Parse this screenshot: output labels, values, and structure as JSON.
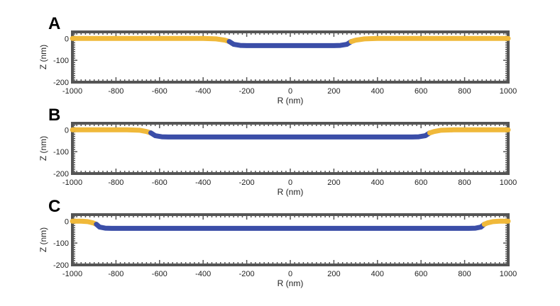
{
  "chart_data": [
    {
      "type": "line",
      "panel_label": "A",
      "xlabel": "R (nm)",
      "ylabel": "Z (nm)",
      "xlim": [
        -1000,
        1000
      ],
      "ylim": [
        -200,
        30
      ],
      "x_ticks": [
        -1000,
        -800,
        -600,
        -400,
        -200,
        0,
        200,
        400,
        600,
        800,
        1000
      ],
      "y_ticks": [
        0,
        -100,
        -200
      ],
      "grid": false,
      "series": [
        {
          "color": "#f0b93a",
          "x": [
            -1000,
            -400,
            -340,
            -300,
            -280
          ],
          "y": [
            0,
            0,
            -2,
            -8,
            -14
          ]
        },
        {
          "color": "#3b4ea8",
          "x": [
            -280,
            -260,
            -230,
            -200,
            0,
            200,
            230,
            260,
            280
          ],
          "y": [
            -14,
            -27,
            -32,
            -33,
            -33,
            -33,
            -32,
            -27,
            -14
          ]
        },
        {
          "color": "#f0b93a",
          "x": [
            280,
            300,
            340,
            400,
            1000
          ],
          "y": [
            -14,
            -8,
            -2,
            0,
            0
          ]
        }
      ]
    },
    {
      "type": "line",
      "panel_label": "B",
      "xlabel": "R (nm)",
      "ylabel": "Z (nm)",
      "xlim": [
        -1000,
        1000
      ],
      "ylim": [
        -200,
        30
      ],
      "x_ticks": [
        -1000,
        -800,
        -600,
        -400,
        -200,
        0,
        200,
        400,
        600,
        800,
        1000
      ],
      "y_ticks": [
        0,
        -100,
        -200
      ],
      "grid": false,
      "series": [
        {
          "color": "#f0b93a",
          "x": [
            -1000,
            -750,
            -690,
            -660,
            -640
          ],
          "y": [
            0,
            0,
            -2,
            -8,
            -14
          ]
        },
        {
          "color": "#3b4ea8",
          "x": [
            -640,
            -620,
            -590,
            -560,
            0,
            560,
            590,
            620,
            640
          ],
          "y": [
            -14,
            -27,
            -32,
            -33,
            -33,
            -33,
            -32,
            -27,
            -14
          ]
        },
        {
          "color": "#f0b93a",
          "x": [
            640,
            660,
            690,
            750,
            1000
          ],
          "y": [
            -14,
            -8,
            -2,
            0,
            0
          ]
        }
      ]
    },
    {
      "type": "line",
      "panel_label": "C",
      "xlabel": "R (nm)",
      "ylabel": "Z (nm)",
      "xlim": [
        -1000,
        1000
      ],
      "ylim": [
        -200,
        30
      ],
      "x_ticks": [
        -1000,
        -800,
        -600,
        -400,
        -200,
        0,
        200,
        400,
        600,
        800,
        1000
      ],
      "y_ticks": [
        0,
        -100,
        -200
      ],
      "grid": false,
      "series": [
        {
          "color": "#f0b93a",
          "x": [
            -1000,
            -960,
            -930,
            -905,
            -890
          ],
          "y": [
            0,
            0,
            -2,
            -8,
            -14
          ]
        },
        {
          "color": "#3b4ea8",
          "x": [
            -890,
            -875,
            -850,
            -820,
            0,
            820,
            850,
            875,
            890
          ],
          "y": [
            -14,
            -27,
            -32,
            -33,
            -33,
            -33,
            -32,
            -27,
            -14
          ]
        },
        {
          "color": "#f0b93a",
          "x": [
            890,
            905,
            930,
            960,
            1000
          ],
          "y": [
            -14,
            -8,
            -2,
            0,
            0
          ]
        }
      ]
    }
  ]
}
